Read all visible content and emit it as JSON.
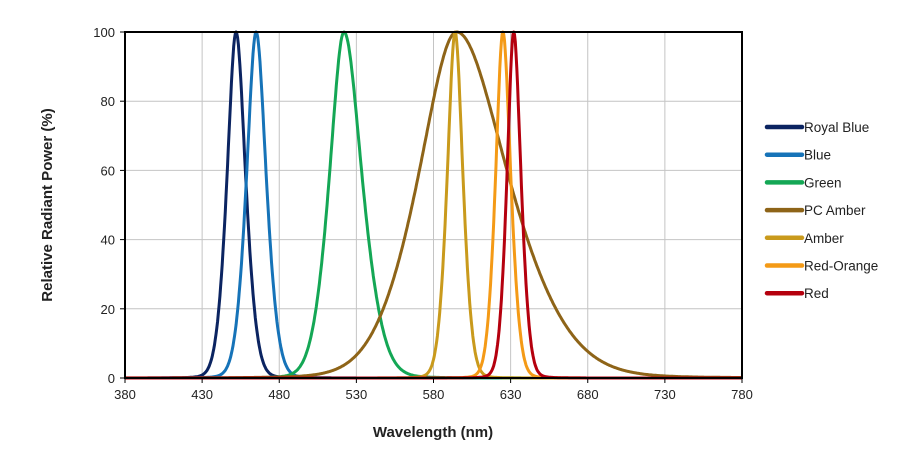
{
  "chart_data": {
    "type": "line",
    "title": "",
    "xlabel": "Wavelength (nm)",
    "ylabel": "Relative Radiant Power (%)",
    "xlim": [
      380,
      780
    ],
    "ylim": [
      0,
      100
    ],
    "xticks": [
      "380",
      "430",
      "480",
      "530",
      "580",
      "630",
      "680",
      "730",
      "780"
    ],
    "yticks": [
      "0",
      "20",
      "40",
      "60",
      "80",
      "100"
    ],
    "grid": true,
    "legend_position": "right",
    "series": [
      {
        "name": "Royal Blue",
        "color": "#0b2461",
        "peak_nm": 452,
        "fwhm_left_nm": 16,
        "fwhm_right_nm": 17,
        "peak_value": 100
      },
      {
        "name": "Blue",
        "color": "#1673b8",
        "peak_nm": 465,
        "fwhm_left_nm": 17,
        "fwhm_right_nm": 18,
        "peak_value": 100
      },
      {
        "name": "Green",
        "color": "#14a755",
        "peak_nm": 522,
        "fwhm_left_nm": 26,
        "fwhm_right_nm": 32,
        "peak_value": 100
      },
      {
        "name": "PC Amber",
        "color": "#8e6418",
        "peak_nm": 595,
        "fwhm_left_nm": 68,
        "fwhm_right_nm": 92,
        "peak_value": 100
      },
      {
        "name": "Amber",
        "color": "#c99a1c",
        "peak_nm": 594,
        "fwhm_left_nm": 14,
        "fwhm_right_nm": 14,
        "peak_value": 100
      },
      {
        "name": "Red-Orange",
        "color": "#f49a16",
        "peak_nm": 625,
        "fwhm_left_nm": 13,
        "fwhm_right_nm": 14,
        "peak_value": 100
      },
      {
        "name": "Red",
        "color": "#b5000e",
        "peak_nm": 632,
        "fwhm_left_nm": 12,
        "fwhm_right_nm": 13,
        "peak_value": 100
      }
    ]
  }
}
